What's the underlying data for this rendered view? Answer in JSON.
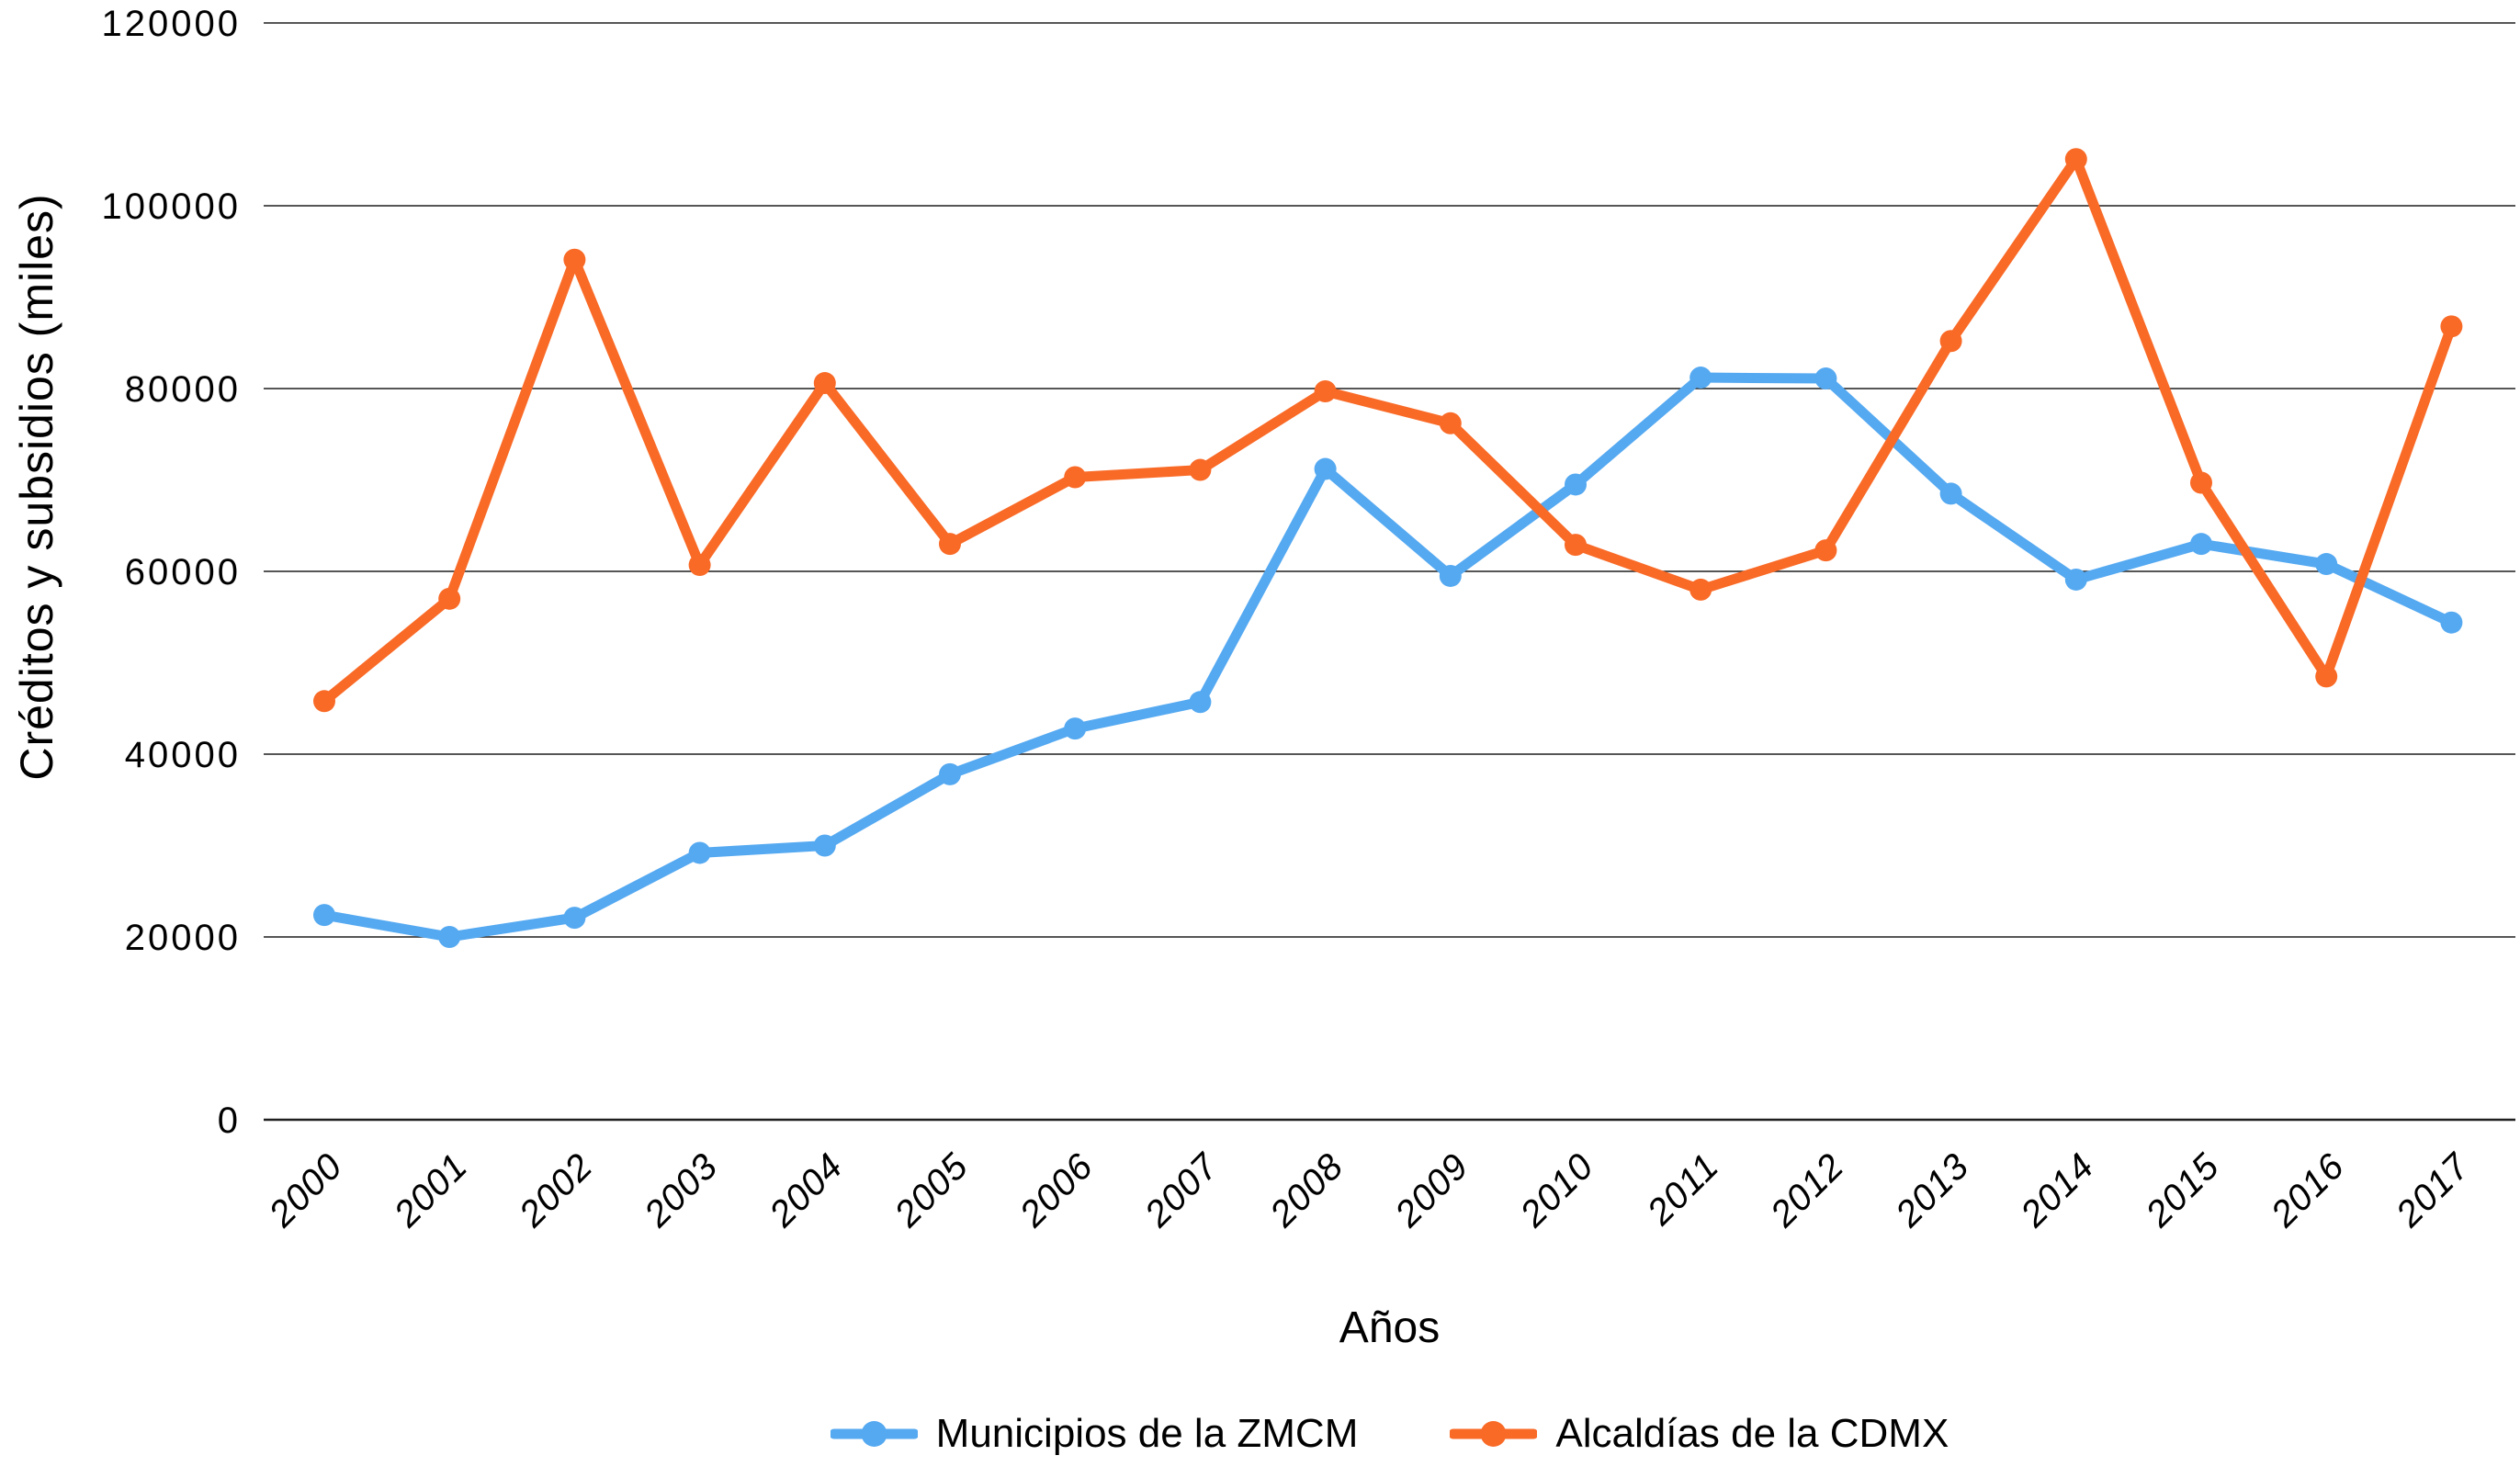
{
  "chart_data": {
    "type": "line",
    "title": "",
    "xlabel": "Años",
    "ylabel": "Créditos y subsidios (miles)",
    "categories": [
      "2000",
      "2001",
      "2002",
      "2003",
      "2004",
      "2005",
      "2006",
      "2007",
      "2008",
      "2009",
      "2010",
      "2011",
      "2012",
      "2013",
      "2014",
      "2015",
      "2016",
      "2017"
    ],
    "series": [
      {
        "name": "Municipios de la ZMCM",
        "color": "#55a9f1",
        "values": [
          22400,
          20000,
          22100,
          29200,
          30000,
          37800,
          42800,
          45700,
          71200,
          59500,
          69500,
          81200,
          81100,
          68500,
          59100,
          63000,
          60800,
          54400
        ]
      },
      {
        "name": "Alcaldías de la CDMX",
        "color": "#f96a27",
        "values": [
          45800,
          57000,
          94100,
          60700,
          80600,
          63000,
          70300,
          71100,
          79700,
          76200,
          62900,
          58000,
          62300,
          85200,
          105100,
          69700,
          48500,
          86800
        ]
      }
    ],
    "ylim": [
      0,
      120000
    ],
    "y_ticks": [
      0,
      20000,
      40000,
      60000,
      80000,
      100000,
      120000
    ],
    "grid": "horizontal",
    "grid_color": "#1f1f1f",
    "axis_color": "#1f1f1f",
    "legend_position": "bottom",
    "x_tick_rotation_deg": -45
  }
}
